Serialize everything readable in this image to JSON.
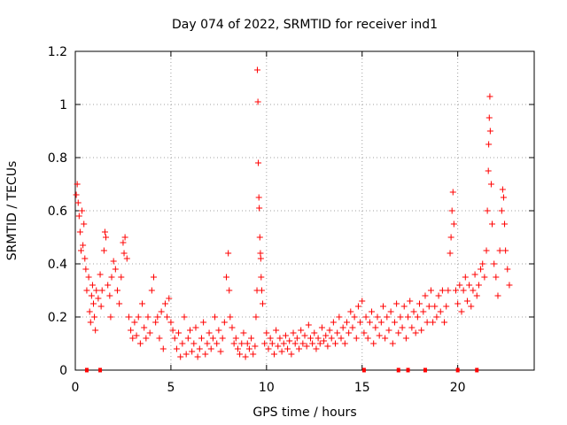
{
  "chart_data": {
    "type": "scatter",
    "title": "Day 074 of 2022, SRMTID for receiver ind1",
    "xlabel": "GPS time / hours",
    "ylabel": "SRMTID / TECUs",
    "xlim": [
      0,
      24
    ],
    "ylim": [
      0,
      1.2
    ],
    "x_ticks": [
      0,
      5,
      10,
      15,
      20
    ],
    "x_tick_labels": [
      "0",
      "5",
      "10",
      "15",
      "20"
    ],
    "y_ticks": [
      0,
      0.2,
      0.4,
      0.6,
      0.8,
      1.0,
      1.2
    ],
    "y_tick_labels": [
      "0",
      "0.2",
      "0.4",
      "0.6",
      "0.8",
      "1",
      "1.2"
    ],
    "grid": true,
    "marker": "+",
    "series_color": "#ff0000",
    "series": [
      {
        "name": "SRMTID",
        "points": [
          [
            0.05,
            0.66
          ],
          [
            0.1,
            0.7
          ],
          [
            0.15,
            0.63
          ],
          [
            0.2,
            0.58
          ],
          [
            0.25,
            0.52
          ],
          [
            0.3,
            0.45
          ],
          [
            0.35,
            0.6
          ],
          [
            0.4,
            0.47
          ],
          [
            0.45,
            0.55
          ],
          [
            0.5,
            0.42
          ],
          [
            0.55,
            0.38
          ],
          [
            0.6,
            0.3
          ],
          [
            0.7,
            0.35
          ],
          [
            0.75,
            0.22
          ],
          [
            0.8,
            0.18
          ],
          [
            0.85,
            0.28
          ],
          [
            0.9,
            0.32
          ],
          [
            0.95,
            0.25
          ],
          [
            1.0,
            0.2
          ],
          [
            1.05,
            0.15
          ],
          [
            1.1,
            0.3
          ],
          [
            1.2,
            0.27
          ],
          [
            1.3,
            0.36
          ],
          [
            1.35,
            0.24
          ],
          [
            1.4,
            0.3
          ],
          [
            1.5,
            0.45
          ],
          [
            1.55,
            0.52
          ],
          [
            1.6,
            0.5
          ],
          [
            1.7,
            0.32
          ],
          [
            1.8,
            0.28
          ],
          [
            1.85,
            0.2
          ],
          [
            1.9,
            0.35
          ],
          [
            2.0,
            0.41
          ],
          [
            2.1,
            0.38
          ],
          [
            2.2,
            0.3
          ],
          [
            2.3,
            0.25
          ],
          [
            2.4,
            0.35
          ],
          [
            2.5,
            0.48
          ],
          [
            2.55,
            0.44
          ],
          [
            2.6,
            0.5
          ],
          [
            2.7,
            0.42
          ],
          [
            2.8,
            0.2
          ],
          [
            2.9,
            0.15
          ],
          [
            3.0,
            0.12
          ],
          [
            3.1,
            0.18
          ],
          [
            3.2,
            0.13
          ],
          [
            3.3,
            0.2
          ],
          [
            3.4,
            0.1
          ],
          [
            3.5,
            0.25
          ],
          [
            3.6,
            0.16
          ],
          [
            3.7,
            0.12
          ],
          [
            3.8,
            0.2
          ],
          [
            3.9,
            0.14
          ],
          [
            4.0,
            0.3
          ],
          [
            4.1,
            0.35
          ],
          [
            4.2,
            0.18
          ],
          [
            4.3,
            0.2
          ],
          [
            4.4,
            0.12
          ],
          [
            4.5,
            0.22
          ],
          [
            4.6,
            0.08
          ],
          [
            4.7,
            0.25
          ],
          [
            4.8,
            0.2
          ],
          [
            4.9,
            0.27
          ],
          [
            5.0,
            0.18
          ],
          [
            5.1,
            0.15
          ],
          [
            5.2,
            0.12
          ],
          [
            5.3,
            0.08
          ],
          [
            5.4,
            0.14
          ],
          [
            5.5,
            0.05
          ],
          [
            5.6,
            0.1
          ],
          [
            5.7,
            0.2
          ],
          [
            5.8,
            0.06
          ],
          [
            5.9,
            0.12
          ],
          [
            6.0,
            0.15
          ],
          [
            6.1,
            0.07
          ],
          [
            6.2,
            0.1
          ],
          [
            6.3,
            0.16
          ],
          [
            6.4,
            0.05
          ],
          [
            6.5,
            0.08
          ],
          [
            6.6,
            0.12
          ],
          [
            6.7,
            0.18
          ],
          [
            6.8,
            0.06
          ],
          [
            6.9,
            0.1
          ],
          [
            7.0,
            0.14
          ],
          [
            7.1,
            0.08
          ],
          [
            7.2,
            0.12
          ],
          [
            7.3,
            0.2
          ],
          [
            7.4,
            0.1
          ],
          [
            7.5,
            0.15
          ],
          [
            7.6,
            0.07
          ],
          [
            7.7,
            0.12
          ],
          [
            7.8,
            0.18
          ],
          [
            7.9,
            0.35
          ],
          [
            8.0,
            0.44
          ],
          [
            8.05,
            0.3
          ],
          [
            8.1,
            0.2
          ],
          [
            8.2,
            0.16
          ],
          [
            8.3,
            0.1
          ],
          [
            8.4,
            0.12
          ],
          [
            8.5,
            0.08
          ],
          [
            8.6,
            0.06
          ],
          [
            8.7,
            0.1
          ],
          [
            8.8,
            0.14
          ],
          [
            8.9,
            0.05
          ],
          [
            9.0,
            0.1
          ],
          [
            9.1,
            0.08
          ],
          [
            9.2,
            0.12
          ],
          [
            9.3,
            0.06
          ],
          [
            9.4,
            0.09
          ],
          [
            9.45,
            0.2
          ],
          [
            9.5,
            0.3
          ],
          [
            9.52,
            1.13
          ],
          [
            9.55,
            1.01
          ],
          [
            9.57,
            0.78
          ],
          [
            9.6,
            0.65
          ],
          [
            9.62,
            0.61
          ],
          [
            9.65,
            0.5
          ],
          [
            9.68,
            0.44
          ],
          [
            9.7,
            0.42
          ],
          [
            9.72,
            0.35
          ],
          [
            9.75,
            0.3
          ],
          [
            9.8,
            0.25
          ],
          [
            9.9,
            0.1
          ],
          [
            10.0,
            0.14
          ],
          [
            10.1,
            0.08
          ],
          [
            10.2,
            0.12
          ],
          [
            10.3,
            0.1
          ],
          [
            10.4,
            0.06
          ],
          [
            10.5,
            0.15
          ],
          [
            10.6,
            0.09
          ],
          [
            10.7,
            0.12
          ],
          [
            10.8,
            0.07
          ],
          [
            10.9,
            0.1
          ],
          [
            11.0,
            0.13
          ],
          [
            11.1,
            0.08
          ],
          [
            11.2,
            0.11
          ],
          [
            11.3,
            0.06
          ],
          [
            11.4,
            0.14
          ],
          [
            11.5,
            0.1
          ],
          [
            11.6,
            0.12
          ],
          [
            11.7,
            0.08
          ],
          [
            11.8,
            0.15
          ],
          [
            11.9,
            0.1
          ],
          [
            12.0,
            0.13
          ],
          [
            12.1,
            0.09
          ],
          [
            12.2,
            0.17
          ],
          [
            12.3,
            0.12
          ],
          [
            12.4,
            0.1
          ],
          [
            12.5,
            0.14
          ],
          [
            12.6,
            0.08
          ],
          [
            12.7,
            0.12
          ],
          [
            12.8,
            0.1
          ],
          [
            12.9,
            0.16
          ],
          [
            13.0,
            0.11
          ],
          [
            13.1,
            0.13
          ],
          [
            13.2,
            0.09
          ],
          [
            13.3,
            0.15
          ],
          [
            13.4,
            0.12
          ],
          [
            13.5,
            0.18
          ],
          [
            13.6,
            0.1
          ],
          [
            13.7,
            0.14
          ],
          [
            13.8,
            0.2
          ],
          [
            13.9,
            0.12
          ],
          [
            14.0,
            0.16
          ],
          [
            14.1,
            0.1
          ],
          [
            14.2,
            0.18
          ],
          [
            14.3,
            0.14
          ],
          [
            14.4,
            0.22
          ],
          [
            14.5,
            0.16
          ],
          [
            14.6,
            0.2
          ],
          [
            14.7,
            0.12
          ],
          [
            14.8,
            0.24
          ],
          [
            14.9,
            0.18
          ],
          [
            15.0,
            0.26
          ],
          [
            15.1,
            0.14
          ],
          [
            15.2,
            0.2
          ],
          [
            15.3,
            0.12
          ],
          [
            15.4,
            0.18
          ],
          [
            15.5,
            0.22
          ],
          [
            15.6,
            0.1
          ],
          [
            15.7,
            0.16
          ],
          [
            15.8,
            0.2
          ],
          [
            15.9,
            0.13
          ],
          [
            16.0,
            0.18
          ],
          [
            16.1,
            0.24
          ],
          [
            16.2,
            0.12
          ],
          [
            16.3,
            0.2
          ],
          [
            16.4,
            0.15
          ],
          [
            16.5,
            0.22
          ],
          [
            16.6,
            0.1
          ],
          [
            16.7,
            0.18
          ],
          [
            16.8,
            0.25
          ],
          [
            16.9,
            0.14
          ],
          [
            17.0,
            0.2
          ],
          [
            17.1,
            0.16
          ],
          [
            17.2,
            0.24
          ],
          [
            17.3,
            0.12
          ],
          [
            17.4,
            0.2
          ],
          [
            17.5,
            0.26
          ],
          [
            17.6,
            0.16
          ],
          [
            17.7,
            0.22
          ],
          [
            17.8,
            0.14
          ],
          [
            17.9,
            0.2
          ],
          [
            18.0,
            0.25
          ],
          [
            18.1,
            0.15
          ],
          [
            18.2,
            0.22
          ],
          [
            18.3,
            0.28
          ],
          [
            18.4,
            0.18
          ],
          [
            18.5,
            0.24
          ],
          [
            18.6,
            0.3
          ],
          [
            18.7,
            0.18
          ],
          [
            18.8,
            0.24
          ],
          [
            18.9,
            0.2
          ],
          [
            19.0,
            0.28
          ],
          [
            19.1,
            0.22
          ],
          [
            19.2,
            0.3
          ],
          [
            19.3,
            0.18
          ],
          [
            19.4,
            0.24
          ],
          [
            19.5,
            0.3
          ],
          [
            19.6,
            0.44
          ],
          [
            19.65,
            0.5
          ],
          [
            19.7,
            0.6
          ],
          [
            19.75,
            0.67
          ],
          [
            19.8,
            0.55
          ],
          [
            19.9,
            0.3
          ],
          [
            20.0,
            0.25
          ],
          [
            20.1,
            0.32
          ],
          [
            20.2,
            0.22
          ],
          [
            20.3,
            0.3
          ],
          [
            20.4,
            0.35
          ],
          [
            20.5,
            0.26
          ],
          [
            20.6,
            0.32
          ],
          [
            20.7,
            0.24
          ],
          [
            20.8,
            0.3
          ],
          [
            20.9,
            0.36
          ],
          [
            21.0,
            0.28
          ],
          [
            21.1,
            0.32
          ],
          [
            21.2,
            0.38
          ],
          [
            21.3,
            0.4
          ],
          [
            21.4,
            0.35
          ],
          [
            21.5,
            0.45
          ],
          [
            21.55,
            0.6
          ],
          [
            21.6,
            0.75
          ],
          [
            21.62,
            0.85
          ],
          [
            21.65,
            0.95
          ],
          [
            21.68,
            1.03
          ],
          [
            21.7,
            0.9
          ],
          [
            21.75,
            0.7
          ],
          [
            21.8,
            0.55
          ],
          [
            21.9,
            0.4
          ],
          [
            22.0,
            0.35
          ],
          [
            22.1,
            0.28
          ],
          [
            22.2,
            0.45
          ],
          [
            22.3,
            0.6
          ],
          [
            22.35,
            0.68
          ],
          [
            22.4,
            0.65
          ],
          [
            22.45,
            0.55
          ],
          [
            22.5,
            0.45
          ],
          [
            22.6,
            0.38
          ],
          [
            22.7,
            0.32
          ]
        ]
      }
    ],
    "baseline_points": [
      [
        0.6,
        0.0
      ],
      [
        1.3,
        0.0
      ],
      [
        15.1,
        0.0
      ],
      [
        16.9,
        0.0
      ],
      [
        17.4,
        0.0
      ],
      [
        18.3,
        0.0
      ],
      [
        20.0,
        0.0
      ],
      [
        21.0,
        0.0
      ]
    ]
  }
}
